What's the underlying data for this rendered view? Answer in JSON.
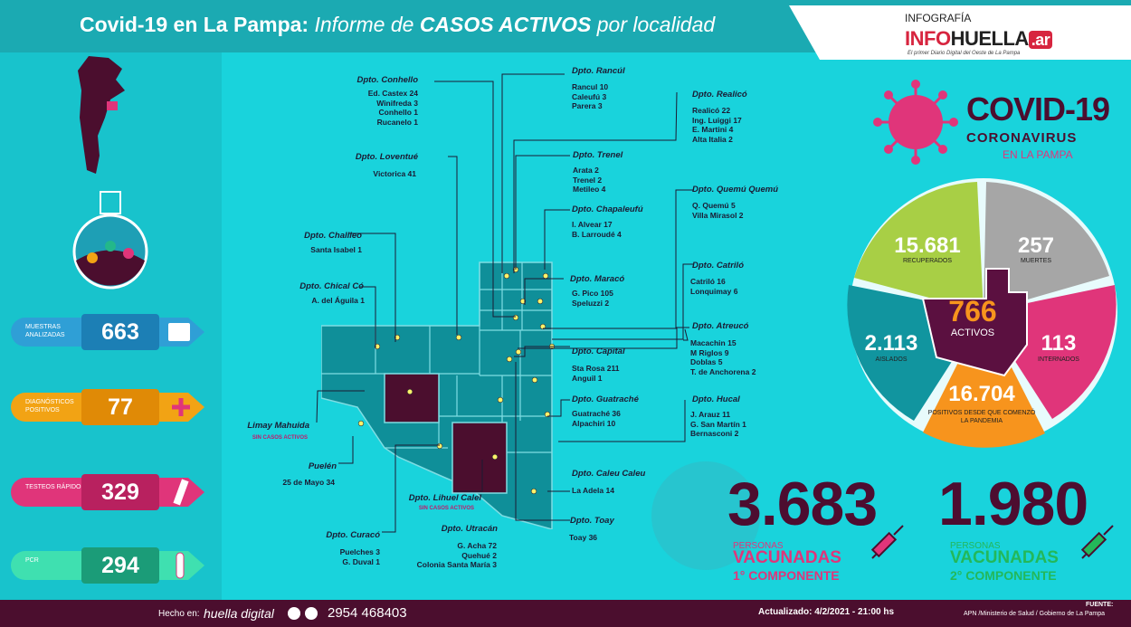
{
  "header": {
    "title_bold": "Covid-19 en La Pampa:",
    "title_italic_1": " Informe de ",
    "title_bold_italic": "CASOS ACTIVOS",
    "title_italic_2": " por localidad"
  },
  "logo": {
    "kicker": "INFOGRAFÍA",
    "brand_info": "INFO",
    "brand_huella": "HUELLA",
    "brand_ar": ".ar",
    "tagline": "El primer Diario Digital del Oeste de La Pampa"
  },
  "stats": [
    {
      "label": "MUESTRAS ANALIZADAS",
      "value": "663",
      "color": "#2f9fd6"
    },
    {
      "label": "DIAGNÓSTICOS POSITIVOS",
      "value": "77",
      "color": "#f2a314"
    },
    {
      "label": "TESTEOS RÁPIDOS",
      "value": "329",
      "color": "#e0357a"
    },
    {
      "label": "PCR",
      "value": "294",
      "color": "#23b88a"
    }
  ],
  "covid_title": {
    "line1": "COVID-19",
    "line2": "CORONAVIRUS",
    "line3": "EN LA PAMPA"
  },
  "pie": {
    "recuperados": {
      "value": "15.681",
      "label": "RECUPERADOS"
    },
    "muertes": {
      "value": "257",
      "label": "MUERTES"
    },
    "internados": {
      "value": "113",
      "label": "INTERNADOS"
    },
    "positivos": {
      "value": "16.704",
      "label": "POSITIVOS DESDE QUE COMENZÓ LA PANDEMIA"
    },
    "aislados": {
      "value": "2.113",
      "label": "AISLADOS"
    },
    "activos": {
      "value": "766",
      "label": "ACTIVOS"
    }
  },
  "departments": {
    "conhello": {
      "name": "Dpto. Conhello",
      "cities": [
        "Ed. Castex 24",
        "Winifreda 3",
        "Conhello 1",
        "Rucanelo 1"
      ]
    },
    "loventue": {
      "name": "Dpto. Loventué",
      "cities": [
        "Victorica 41"
      ]
    },
    "chalileo": {
      "name": "Dpto. Chalileo",
      "cities": [
        "Santa Isabel 1"
      ]
    },
    "chical_co": {
      "name": "Dpto. Chical Có",
      "cities": [
        "A. del Águila 1"
      ]
    },
    "limay": {
      "name": "Limay Mahuida",
      "note": "SIN CASOS ACTIVOS"
    },
    "puelen": {
      "name": "Puelén",
      "cities": [
        "25 de Mayo 34"
      ]
    },
    "curaco": {
      "name": "Dpto. Curacó",
      "cities": [
        "Puelches 3",
        "G. Duval 1"
      ]
    },
    "lihuel": {
      "name": "Dpto. Lihuel Calel",
      "note": "SIN CASOS ACTIVOS"
    },
    "utracan": {
      "name": "Dpto. Utracán",
      "cities": [
        "G. Acha 72",
        "Quehué 2",
        "Colonia Santa María 3"
      ]
    },
    "rancul": {
      "name": "Dpto. Rancúl",
      "cities": [
        "Rancul 10",
        "Caleufú 3",
        "Parera 3"
      ]
    },
    "trenel": {
      "name": "Dpto. Trenel",
      "cities": [
        "Arata 2",
        "Trenel 2",
        "Metileo 4"
      ]
    },
    "chapaleufu": {
      "name": "Dpto. Chapaleufú",
      "cities": [
        "I. Alvear 17",
        "B. Larroudé 4"
      ]
    },
    "maraco": {
      "name": "Dpto. Maracó",
      "cities": [
        "G. Pico 105",
        "Speluzzi 2"
      ]
    },
    "capital": {
      "name": "Dpto. Capital",
      "cities": [
        "Sta Rosa 211",
        "Anguil 1"
      ]
    },
    "guatrache": {
      "name": "Dpto. Guatraché",
      "cities": [
        "Guatraché 36",
        "Alpachiri 10"
      ]
    },
    "caleu": {
      "name": "Dpto. Caleu Caleu",
      "cities": [
        "La Adela 14"
      ]
    },
    "toay": {
      "name": "Dpto. Toay",
      "cities": [
        "Toay 36"
      ]
    },
    "realico": {
      "name": "Dpto. Realicó",
      "cities": [
        "Realicó 22",
        "Ing. Luiggi 17",
        "E. Martini 4",
        "Alta Italia 2"
      ]
    },
    "quemu": {
      "name": "Dpto. Quemú Quemú",
      "cities": [
        "Q. Quemú 5",
        "Villa Mirasol 2"
      ]
    },
    "catrilo": {
      "name": "Dpto. Catriló",
      "cities": [
        "Catriló 16",
        "Lonquimay 6"
      ]
    },
    "atreuco": {
      "name": "Dpto. Atreucó",
      "cities": [
        "Macachin 15",
        "M Riglos 9",
        "Doblas 5",
        "T. de Anchorena 2"
      ]
    },
    "hucal": {
      "name": "Dpto. Hucal",
      "cities": [
        "J. Arauz 11",
        "G. San Martín 1",
        "Bernasconi 2"
      ]
    }
  },
  "vaccines": {
    "first": {
      "number": "3.683",
      "small": "PERSONAS",
      "big": "VACUNADAS",
      "comp": "1° COMPONENTE",
      "color": "#e0357a"
    },
    "second": {
      "number": "1.980",
      "small": "PERSONAS",
      "big": "VACUNADAS",
      "comp": "2° COMPONENTE",
      "color": "#23b85a"
    }
  },
  "footer": {
    "made_by": "Hecho en:",
    "brand": "huella digital",
    "phone": "2954 468403",
    "updated": "Actualizado: 4/2/2021  -  21:00 hs",
    "source_label": "FUENTE:",
    "source": "APN /Ministerio de Salud  / Gobierno de La Pampa"
  }
}
